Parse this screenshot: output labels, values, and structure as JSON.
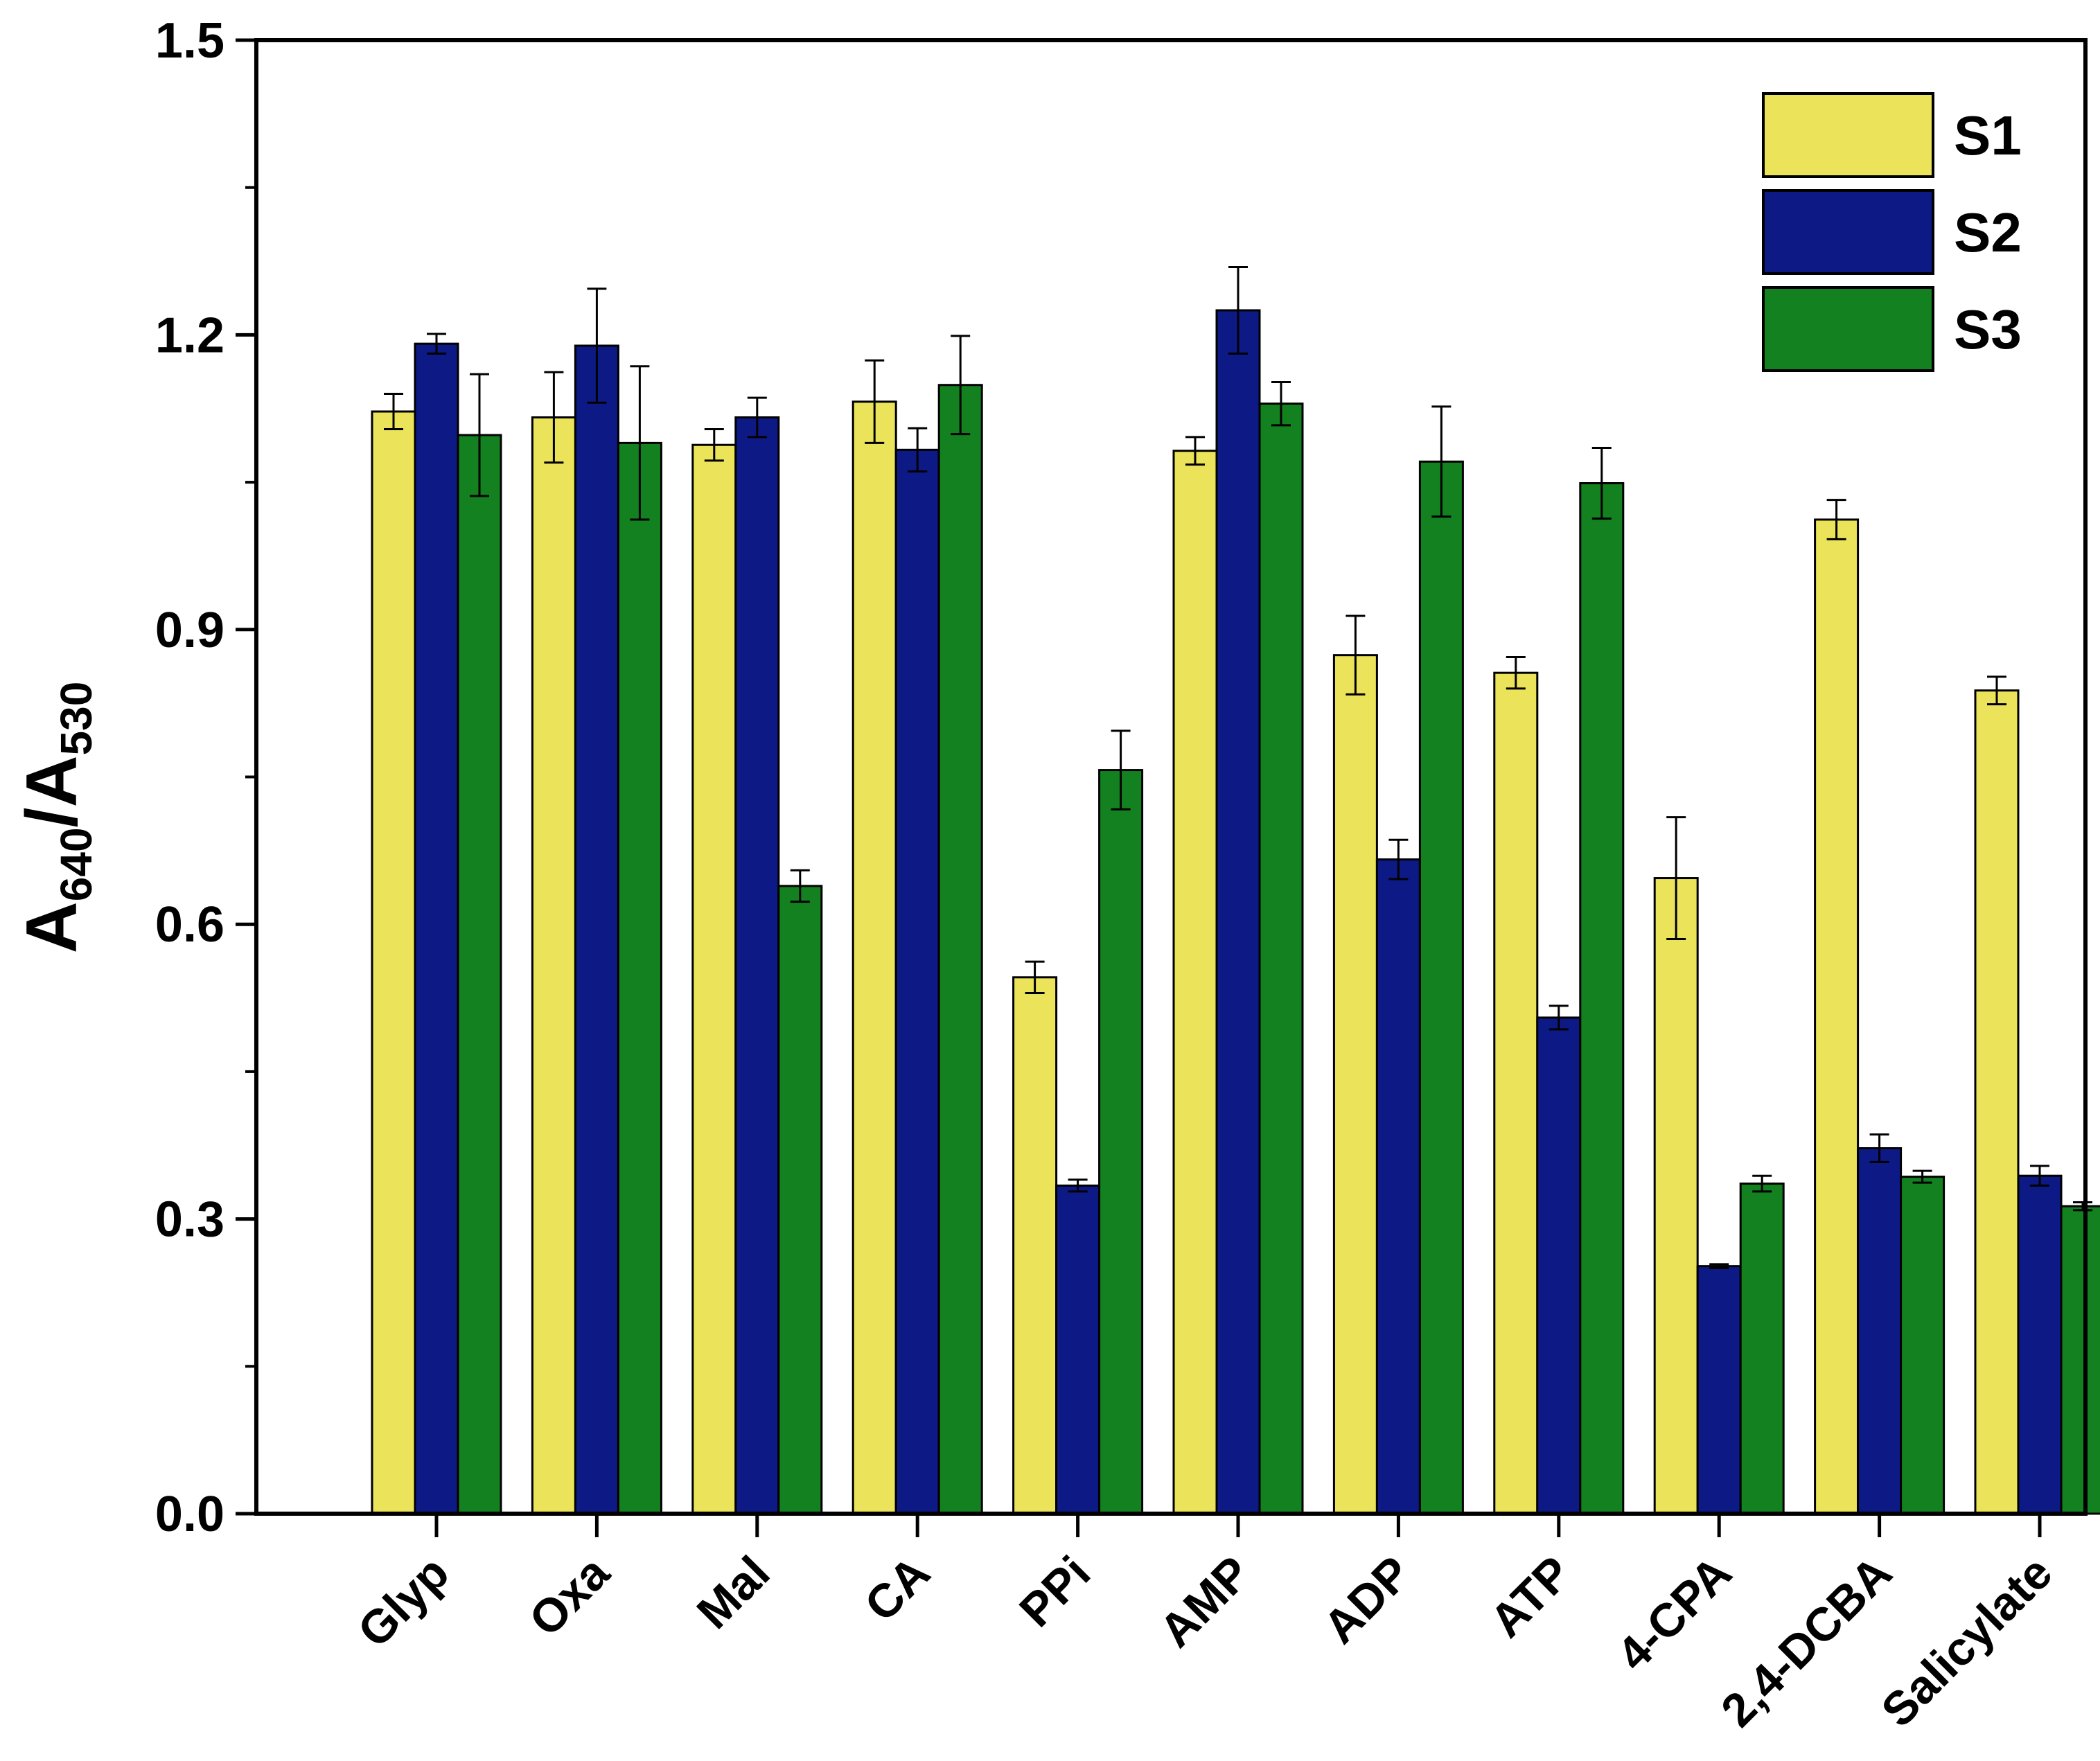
{
  "chart_data": {
    "type": "bar",
    "title": "",
    "xlabel": "",
    "ylabel": {
      "main": "A",
      "sub1": "640",
      "sep": "/A",
      "sub2": "530"
    },
    "ylim": [
      0,
      1.5
    ],
    "yticks": [
      "0.0",
      "0.3",
      "0.6",
      "0.9",
      "1.2",
      "1.5"
    ],
    "ytick_values": [
      0,
      0.3,
      0.6,
      0.9,
      1.2,
      1.5
    ],
    "legend_position": "top-right",
    "categories": [
      "Glyp",
      "Oxa",
      "Mal",
      "CA",
      "PPi",
      "AMP",
      "ADP",
      "ATP",
      "4-CPA",
      "2,4-DCBA",
      "Salicylate"
    ],
    "series": [
      {
        "name": "S1",
        "color": "#ebe359",
        "values": [
          1.122,
          1.116,
          1.088,
          1.132,
          0.546,
          1.082,
          0.874,
          0.856,
          0.647,
          1.012,
          0.838
        ],
        "errors": [
          0.018,
          0.046,
          0.016,
          0.042,
          0.016,
          0.014,
          0.04,
          0.016,
          0.062,
          0.02,
          0.014
        ]
      },
      {
        "name": "S2",
        "color": "#0d1a86",
        "values": [
          1.191,
          1.189,
          1.116,
          1.083,
          0.334,
          1.225,
          0.666,
          0.505,
          0.252,
          0.372,
          0.344
        ],
        "errors": [
          0.01,
          0.058,
          0.02,
          0.022,
          0.006,
          0.044,
          0.02,
          0.012,
          0.002,
          0.014,
          0.01
        ]
      },
      {
        "name": "S3",
        "color": "#13811f",
        "values": [
          1.098,
          1.09,
          0.639,
          1.149,
          0.757,
          1.13,
          1.071,
          1.049,
          0.336,
          0.343,
          0.313
        ],
        "errors": [
          0.062,
          0.078,
          0.016,
          0.05,
          0.04,
          0.022,
          0.056,
          0.036,
          0.008,
          0.006,
          0.004
        ]
      }
    ]
  }
}
